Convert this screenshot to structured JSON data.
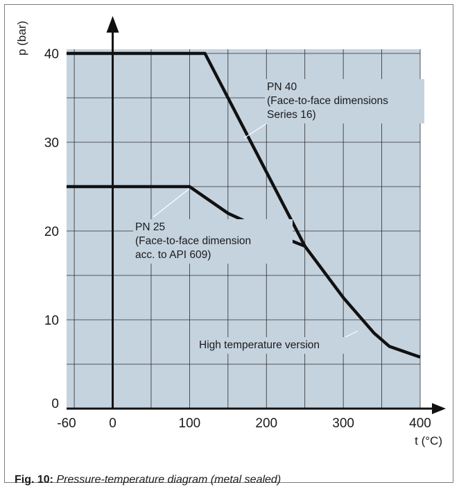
{
  "chart_data": {
    "type": "line",
    "xlabel": "t (°C)",
    "ylabel": "p (bar)",
    "xlim": [
      -60,
      400
    ],
    "ylim": [
      0,
      40
    ],
    "x_ticks": [
      "-60",
      "0",
      "100",
      "200",
      "300",
      "400"
    ],
    "y_ticks": [
      "0",
      "10",
      "20",
      "30",
      "40"
    ],
    "grid": true,
    "background_color": "#c5d3df",
    "series": [
      {
        "key": "pn40",
        "values": [
          [
            -60,
            40
          ],
          [
            120,
            40
          ],
          [
            250,
            18.3
          ]
        ]
      },
      {
        "key": "pn25",
        "values": [
          [
            -60,
            25
          ],
          [
            100,
            25
          ],
          [
            150,
            22
          ],
          [
            200,
            20
          ],
          [
            250,
            18.3
          ]
        ]
      },
      {
        "key": "high_temp",
        "values": [
          [
            250,
            18.3
          ],
          [
            300,
            12.5
          ],
          [
            340,
            8.5
          ],
          [
            360,
            7
          ],
          [
            400,
            5.8
          ]
        ]
      }
    ],
    "annotations": [
      {
        "key": "pn40",
        "lines": [
          "PN 40",
          "(Face-to-face dimensions",
          "Series 16)"
        ]
      },
      {
        "key": "pn25",
        "lines": [
          "PN 25",
          "(Face-to-face dimension",
          "acc. to API 609)"
        ]
      },
      {
        "key": "high_temp",
        "lines": [
          "High temperature version"
        ]
      }
    ]
  },
  "caption": {
    "label": "Fig. 10:",
    "text": "Pressure-temperature diagram  (metal sealed)"
  }
}
